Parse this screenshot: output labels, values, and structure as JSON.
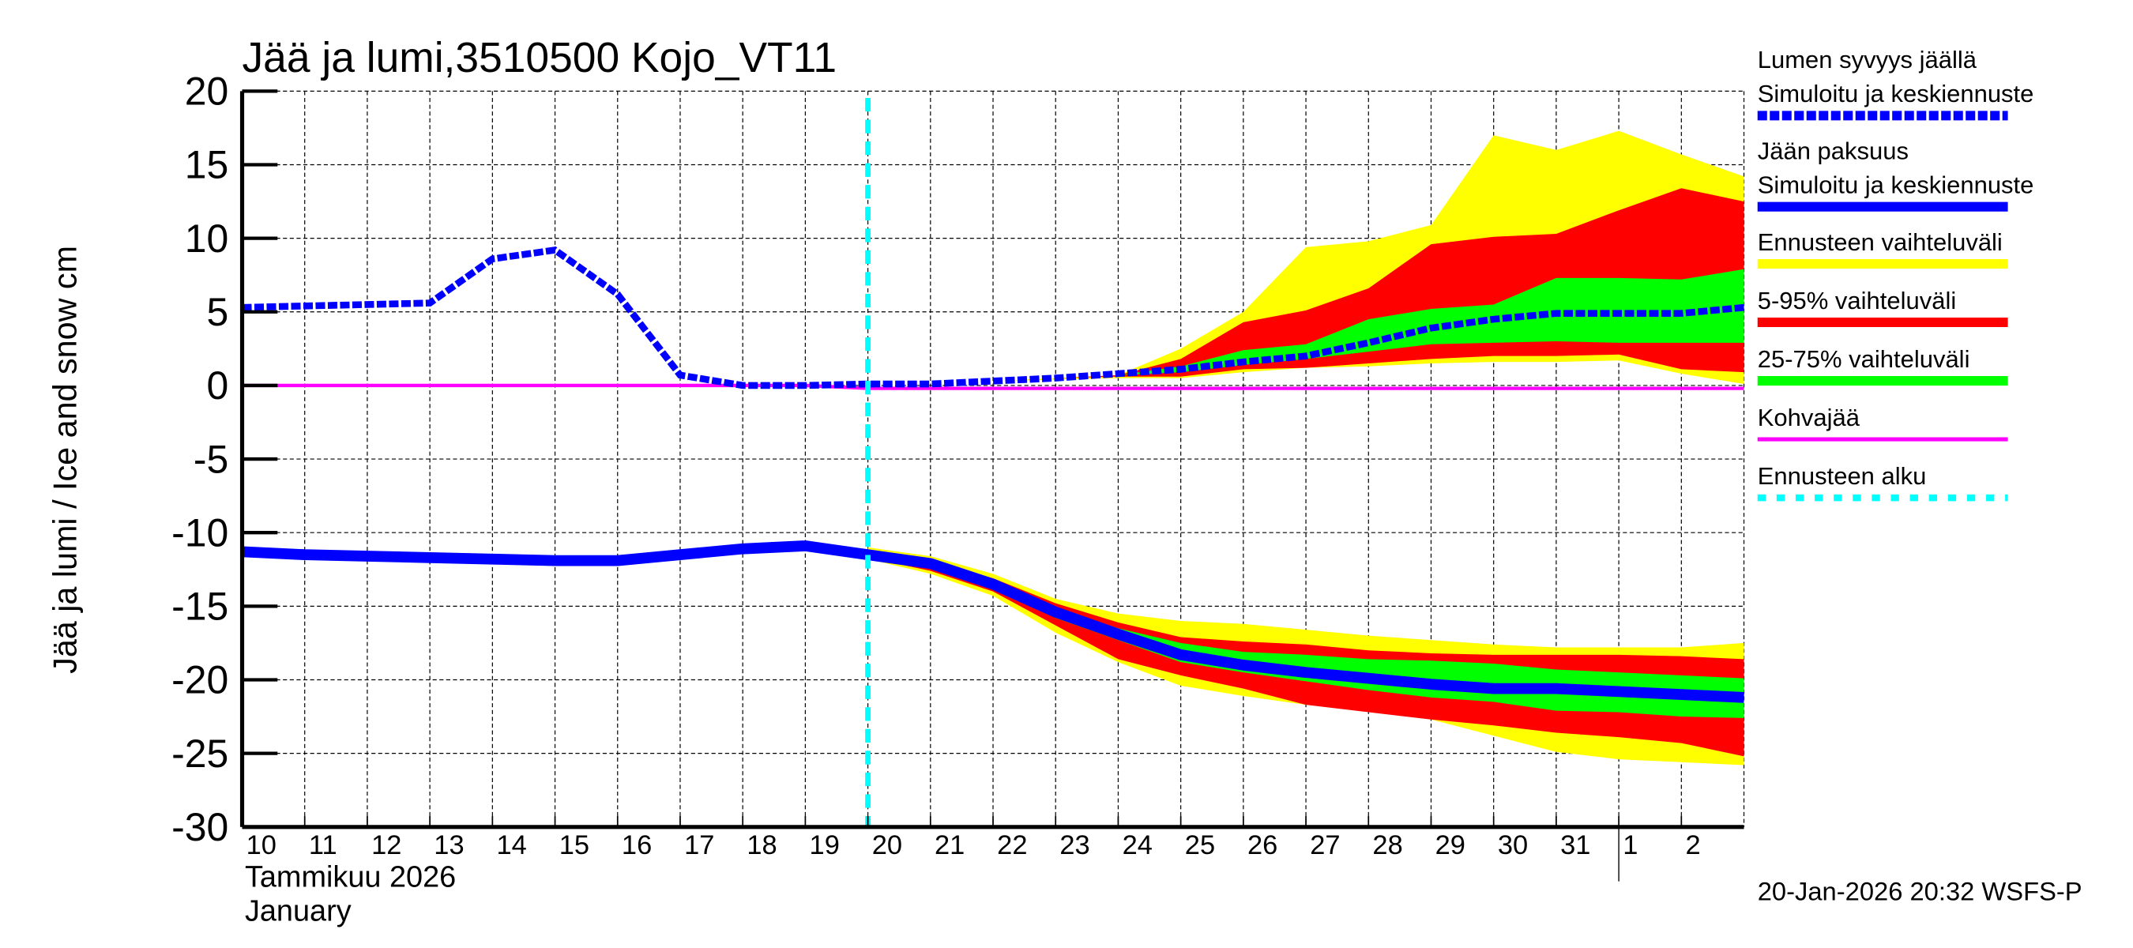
{
  "chart_data": {
    "type": "area",
    "title": "Jää ja lumi,3510500 Kojo_VT11",
    "ylabel": "Jää ja lumi / Ice and snow    cm",
    "xlabel_line1": "Tammikuu  2026",
    "xlabel_line2": "January",
    "footer": "20-Jan-2026 20:32 WSFS-P",
    "ylim": [
      -30,
      20
    ],
    "yticks": [
      20,
      15,
      10,
      5,
      0,
      -5,
      -10,
      -15,
      -20,
      -25,
      -30
    ],
    "x_dates": [
      "Jan 10",
      "Jan 11",
      "Jan 12",
      "Jan 13",
      "Jan 14",
      "Jan 15",
      "Jan 16",
      "Jan 17",
      "Jan 18",
      "Jan 19",
      "Jan 20",
      "Jan 21",
      "Jan 22",
      "Jan 23",
      "Jan 24",
      "Jan 25",
      "Jan 26",
      "Jan 27",
      "Jan 28",
      "Jan 29",
      "Jan 30",
      "Jan 31",
      "Feb 1",
      "Feb 2",
      "Feb 3"
    ],
    "xtick_labels": [
      "10",
      "11",
      "12",
      "13",
      "14",
      "15",
      "16",
      "17",
      "18",
      "19",
      "20",
      "21",
      "22",
      "23",
      "24",
      "25",
      "26",
      "27",
      "28",
      "29",
      "30",
      "31",
      "1",
      "2"
    ],
    "xlim": [
      "Jan 10",
      "Feb 3"
    ],
    "grid": true,
    "forecast_start": "Jan 20",
    "month_boundary": "Feb 1",
    "legend_placement": "right",
    "colors": {
      "snow": "#0000ff",
      "ice": "#0000ff",
      "range": "#ffff00",
      "p5_95": "#ff0000",
      "p25_75": "#00ff00",
      "slush": "#ff00ff",
      "forecast_start": "#00ffff"
    },
    "legend": [
      {
        "label1": "Lumen syvyys jäällä",
        "label2": "Simuloitu ja keskiennuste",
        "style": "dashed",
        "color": "#0000ff"
      },
      {
        "label1": "Jään paksuus",
        "label2": "Simuloitu ja keskiennuste",
        "style": "solid",
        "color": "#0000ff"
      },
      {
        "label1": "Ennusteen vaihteluväli",
        "style": "solid",
        "color": "#ffff00"
      },
      {
        "label1": "5-95% vaihteluväli",
        "style": "solid",
        "color": "#ff0000"
      },
      {
        "label1": "25-75% vaihteluväli",
        "style": "solid",
        "color": "#00ff00"
      },
      {
        "label1": "Kohvajää",
        "style": "thin",
        "color": "#ff00ff"
      },
      {
        "label1": "Ennusteen alku",
        "style": "dotted",
        "color": "#00ffff"
      }
    ],
    "series": {
      "snow_median": [
        5.3,
        5.4,
        5.5,
        5.6,
        8.6,
        9.2,
        6.2,
        0.7,
        0,
        0,
        0.1,
        0.1,
        0.3,
        0.5,
        0.8,
        1.1,
        1.6,
        2.0,
        2.9,
        3.9,
        4.5,
        4.9,
        4.9,
        4.9,
        5.3
      ],
      "snow_bands": {
        "start_index": 10,
        "range_max": [
          0.1,
          0.1,
          0.3,
          0.5,
          0.7,
          2.5,
          5.0,
          9.4,
          9.8,
          10.9,
          17.0,
          16.0,
          17.3,
          15.7,
          14.2
        ],
        "p95": [
          0.1,
          0.1,
          0.3,
          0.5,
          0.7,
          1.8,
          4.3,
          5.1,
          6.6,
          9.6,
          10.1,
          10.3,
          11.9,
          13.4,
          12.5
        ],
        "p75": [
          0.1,
          0.1,
          0.3,
          0.5,
          0.7,
          1.3,
          2.4,
          2.8,
          4.5,
          5.2,
          5.5,
          7.3,
          7.3,
          7.2,
          7.9
        ],
        "p25": [
          0.1,
          0.1,
          0.3,
          0.5,
          0.7,
          0.9,
          1.4,
          1.8,
          2.3,
          2.8,
          2.9,
          3.0,
          2.9,
          2.9,
          2.9
        ],
        "p5": [
          0.1,
          0.1,
          0.3,
          0.5,
          0.6,
          0.6,
          1.1,
          1.2,
          1.5,
          1.8,
          2.0,
          2.0,
          2.1,
          1.1,
          0.9
        ],
        "range_min": [
          0.1,
          0.1,
          0.3,
          0.4,
          0.5,
          0.5,
          0.9,
          1.2,
          1.3,
          1.5,
          1.6,
          1.6,
          1.7,
          0.8,
          0.1
        ]
      },
      "ice_median": [
        -11.3,
        -11.5,
        -11.6,
        -11.7,
        -11.8,
        -11.9,
        -11.9,
        -11.5,
        -11.1,
        -10.9,
        -11.5,
        -12.1,
        -13.5,
        -15.4,
        -16.9,
        -18.3,
        -19.0,
        -19.5,
        -19.9,
        -20.3,
        -20.6,
        -20.6,
        -20.8,
        -21.0,
        -21.2
      ],
      "ice_bands": {
        "start_index": 10,
        "range_max": [
          -11.0,
          -11.6,
          -12.8,
          -14.5,
          -15.5,
          -16.0,
          -16.2,
          -16.6,
          -17.0,
          -17.3,
          -17.6,
          -17.8,
          -17.8,
          -17.8,
          -17.5
        ],
        "p95": [
          -11.3,
          -11.9,
          -13.1,
          -14.8,
          -16.1,
          -17.1,
          -17.4,
          -17.6,
          -18.0,
          -18.2,
          -18.3,
          -18.3,
          -18.3,
          -18.4,
          -18.6
        ],
        "p75": [
          -11.4,
          -12.0,
          -13.3,
          -15.1,
          -16.5,
          -17.5,
          -18.1,
          -18.3,
          -18.6,
          -18.7,
          -18.9,
          -19.3,
          -19.5,
          -19.7,
          -19.9
        ],
        "p25": [
          -11.6,
          -12.3,
          -13.7,
          -15.8,
          -17.3,
          -18.8,
          -19.5,
          -20.1,
          -20.7,
          -21.2,
          -21.5,
          -22.1,
          -22.2,
          -22.5,
          -22.6
        ],
        "p5": [
          -11.7,
          -12.6,
          -14.0,
          -16.3,
          -18.6,
          -19.7,
          -20.6,
          -21.7,
          -22.2,
          -22.7,
          -23.1,
          -23.6,
          -23.9,
          -24.3,
          -25.2
        ],
        "range_min": [
          -11.8,
          -12.8,
          -14.3,
          -16.8,
          -18.8,
          -20.4,
          -21.1,
          -21.7,
          -22.1,
          -22.7,
          -23.8,
          -24.9,
          -25.4,
          -25.6,
          -25.8
        ]
      },
      "slush": [
        0,
        0,
        0,
        0,
        0,
        0,
        0,
        0,
        0,
        0,
        -0.2,
        -0.2,
        -0.2,
        -0.2,
        -0.2,
        -0.2,
        -0.2,
        -0.2,
        -0.2,
        -0.2,
        -0.2,
        -0.2,
        -0.2,
        -0.2,
        -0.2
      ]
    }
  }
}
